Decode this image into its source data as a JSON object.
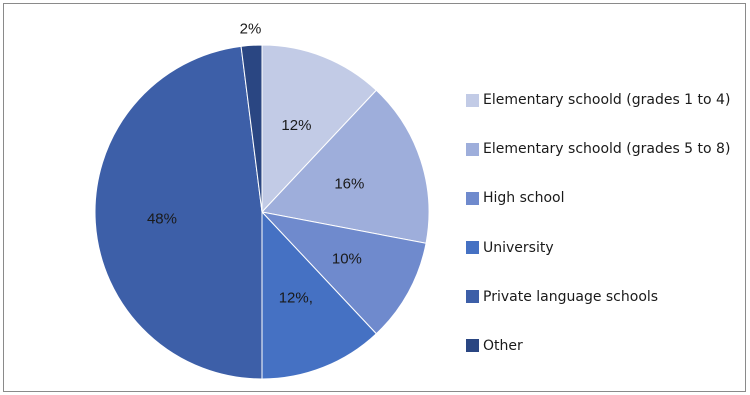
{
  "chart_data": {
    "type": "pie",
    "categories": [
      "Elementary schoold (grades 1 to 4)",
      "Elementary schoold (grades 5 to 8)",
      "High school",
      "University",
      "Private language schools",
      "Other"
    ],
    "values": [
      12,
      16,
      10,
      12,
      48,
      2
    ],
    "data_labels": [
      "12%",
      "16%",
      "10%",
      "12%,",
      "48%",
      "2%"
    ],
    "colors": [
      "#c2cbe6",
      "#9eaedb",
      "#6f8acd",
      "#4571c3",
      "#3d5fa8",
      "#2a4682"
    ],
    "legend_position": "right",
    "start_angle": "12 o'clock, clockwise"
  }
}
